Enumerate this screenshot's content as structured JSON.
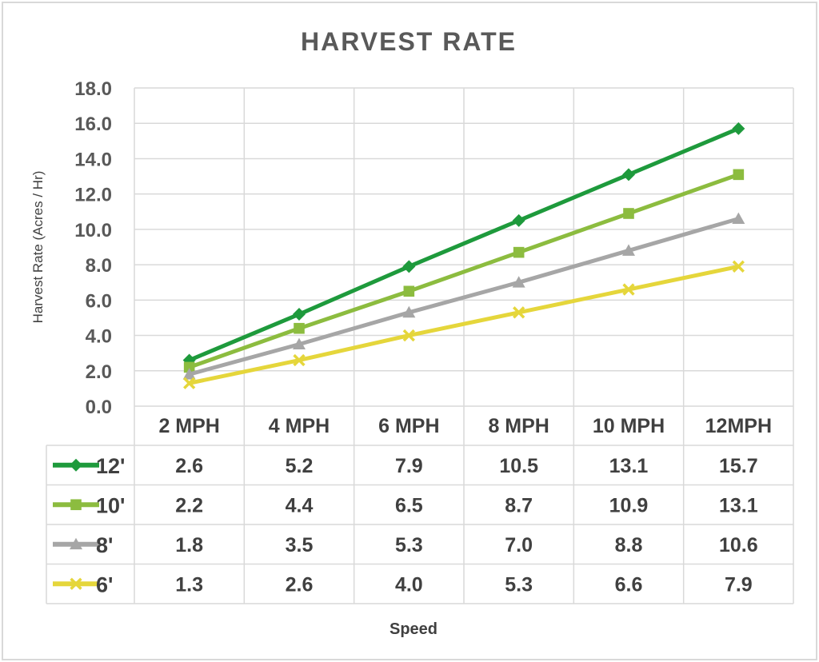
{
  "chart_data": {
    "type": "line",
    "title": "HARVEST RATE",
    "xlabel": "Speed",
    "ylabel": "Harvest Rate (Acres / Hr)",
    "categories": [
      "2 MPH",
      "4 MPH",
      "6 MPH",
      "8 MPH",
      "10 MPH",
      "12MPH"
    ],
    "ylim": [
      0,
      18
    ],
    "ytick_step": 2,
    "ytick_labels": [
      "0.0",
      "2.0",
      "4.0",
      "6.0",
      "8.0",
      "10.0",
      "12.0",
      "14.0",
      "16.0",
      "18.0"
    ],
    "grid": true,
    "legend": "data-table",
    "series": [
      {
        "name": "12'",
        "color": "#1e9a3c",
        "marker": "diamond",
        "values": [
          2.6,
          5.2,
          7.9,
          10.5,
          13.1,
          15.7
        ],
        "labels": [
          "2.6",
          "5.2",
          "7.9",
          "10.5",
          "13.1",
          "15.7"
        ]
      },
      {
        "name": "10'",
        "color": "#8cbc3f",
        "marker": "square",
        "values": [
          2.2,
          4.4,
          6.5,
          8.7,
          10.9,
          13.1
        ],
        "labels": [
          "2.2",
          "4.4",
          "6.5",
          "8.7",
          "10.9",
          "13.1"
        ]
      },
      {
        "name": "8'",
        "color": "#a6a6a6",
        "marker": "triangle",
        "values": [
          1.8,
          3.5,
          5.3,
          7.0,
          8.8,
          10.6
        ],
        "labels": [
          "1.8",
          "3.5",
          "5.3",
          "7.0",
          "8.8",
          "10.6"
        ]
      },
      {
        "name": "6'",
        "color": "#e5d63b",
        "marker": "x",
        "values": [
          1.3,
          2.6,
          4.0,
          5.3,
          6.6,
          7.9
        ],
        "labels": [
          "1.3",
          "2.6",
          "4.0",
          "5.3",
          "6.6",
          "7.9"
        ]
      }
    ]
  }
}
